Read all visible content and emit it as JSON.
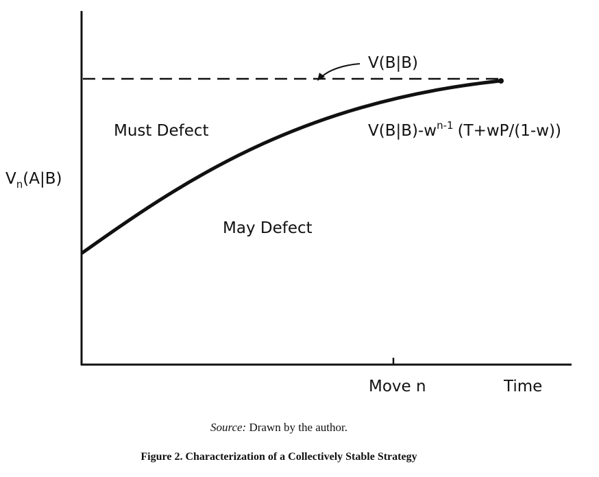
{
  "diagram": {
    "y_axis_label_main": "V",
    "y_axis_label_sub": "n",
    "y_axis_label_rest": "(A|B)",
    "dashed_line_label": "V(B|B)",
    "curve_label_prefix": "V(B|B)-w",
    "curve_label_sup": "n-1",
    "curve_label_suffix": "(T+wP/(1-w))",
    "region_above": "Must Defect",
    "region_below": "May Defect",
    "x_tick_label": "Move n",
    "x_axis_label": "Time"
  },
  "caption": {
    "source_label": "Source:",
    "source_text": "Drawn by the author.",
    "figure_title": "Figure 2. Characterization of a Collectively Stable Strategy"
  }
}
